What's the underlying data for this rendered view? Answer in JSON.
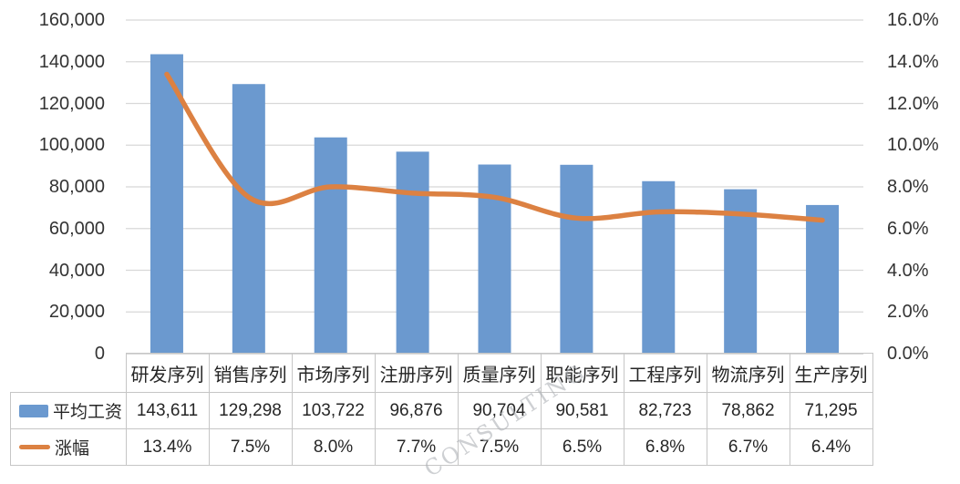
{
  "chart_data": {
    "type": "combo-bar-line",
    "title": "",
    "categories": [
      "研发序列",
      "销售序列",
      "市场序列",
      "注册序列",
      "质量序列",
      "职能序列",
      "工程序列",
      "物流序列",
      "生产序列"
    ],
    "series": [
      {
        "name": "平均工资",
        "type": "bar",
        "axis": "left",
        "color": "#6B99CF",
        "values": [
          143611,
          129298,
          103722,
          96876,
          90704,
          90581,
          82723,
          78862,
          71295
        ],
        "labels": [
          "143,611",
          "129,298",
          "103,722",
          "96,876",
          "90,704",
          "90,581",
          "82,723",
          "78,862",
          "71,295"
        ]
      },
      {
        "name": "涨幅",
        "type": "line",
        "axis": "right",
        "color": "#DC8142",
        "values": [
          13.4,
          7.5,
          8.0,
          7.7,
          7.5,
          6.5,
          6.8,
          6.7,
          6.4
        ],
        "labels": [
          "13.4%",
          "7.5%",
          "8.0%",
          "7.7%",
          "7.5%",
          "6.5%",
          "6.8%",
          "6.7%",
          "6.4%"
        ]
      }
    ],
    "left_axis": {
      "min": 0,
      "max": 160000,
      "step": 20000,
      "tick_labels": [
        "160,000",
        "140,000",
        "120,000",
        "100,000",
        "80,000",
        "60,000",
        "40,000",
        "20,000",
        "0"
      ]
    },
    "right_axis": {
      "min": 0,
      "max": 16,
      "step": 2,
      "tick_labels": [
        "16.0%",
        "14.0%",
        "12.0%",
        "10.0%",
        "8.0%",
        "6.0%",
        "4.0%",
        "2.0%",
        "0.0%"
      ]
    },
    "grid": true,
    "legend_position": "data-table-left"
  },
  "watermark": {
    "text": "CONSULTING"
  },
  "colors": {
    "bar": "#6B99CF",
    "line": "#DC8142",
    "gridline": "#D8D8D8",
    "table_border": "#C6C6C6",
    "text": "#262626",
    "background": "#FFFFFF"
  }
}
